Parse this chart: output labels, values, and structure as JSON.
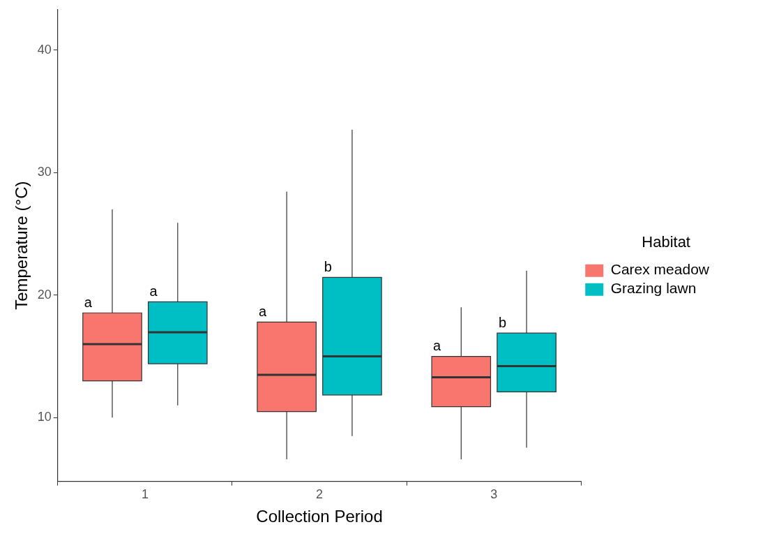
{
  "chart_data": {
    "type": "box",
    "xlabel": "Collection Period",
    "ylabel": "Temperature (°C)",
    "legend_title": "Habitat",
    "legend": "right",
    "grid": false,
    "categories": [
      "1",
      "2",
      "3"
    ],
    "ylim": [
      4.8,
      43.3
    ],
    "yticks": [
      10,
      20,
      30,
      40
    ],
    "series": [
      {
        "name": "Carex meadow",
        "color": "#f8766d",
        "boxes": [
          {
            "low": 10.0,
            "q1": 13.0,
            "median": 16.0,
            "q3": 18.55,
            "high": 27.0
          },
          {
            "low": 6.6,
            "q1": 10.5,
            "median": 13.5,
            "q3": 17.8,
            "high": 28.45
          },
          {
            "low": 6.6,
            "q1": 10.9,
            "median": 13.3,
            "q3": 15.0,
            "high": 19.0
          }
        ]
      },
      {
        "name": "Grazing lawn",
        "color": "#00bfc4",
        "boxes": [
          {
            "low": 11.0,
            "q1": 14.4,
            "median": 16.97,
            "q3": 19.45,
            "high": 25.9
          },
          {
            "low": 8.5,
            "q1": 11.85,
            "median": 15.0,
            "q3": 21.45,
            "high": 33.5
          },
          {
            "low": 7.55,
            "q1": 12.1,
            "median": 14.2,
            "q3": 16.9,
            "high": 22.0
          }
        ]
      }
    ],
    "annotations": [
      "a",
      "a",
      "a",
      "b",
      "a",
      "b"
    ]
  }
}
